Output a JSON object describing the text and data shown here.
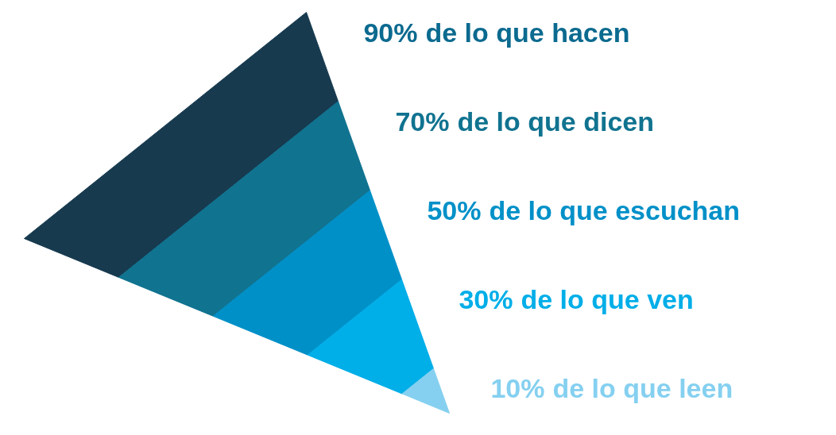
{
  "chart_data": {
    "type": "other",
    "categories": [
      "de lo que hacen",
      "de lo que dicen",
      "de lo que escuchan",
      "de lo que ven",
      "de lo que leen"
    ],
    "values": [
      90,
      70,
      50,
      30,
      10
    ],
    "value_labels": [
      "90%",
      "70%",
      "50%",
      "30%",
      "10%"
    ],
    "colors": [
      "#173a4f",
      "#107390",
      "#0090c8",
      "#00aee8",
      "#85d0f0"
    ]
  }
}
